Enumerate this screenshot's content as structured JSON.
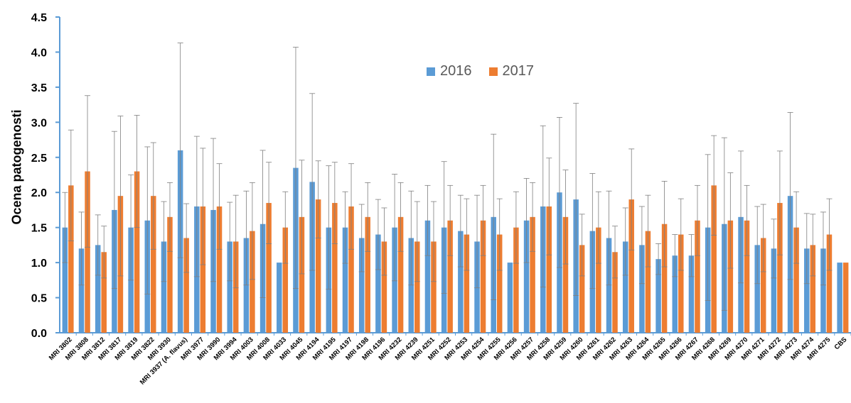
{
  "chart_data": {
    "type": "bar",
    "title": "",
    "xlabel": "",
    "ylabel": "Ocena patogenosti",
    "ylim": [
      0,
      4.5
    ],
    "yticks": [
      "0.0",
      "0.5",
      "1.0",
      "1.5",
      "2.0",
      "2.5",
      "3.0",
      "3.5",
      "4.0",
      "4.5"
    ],
    "grid": false,
    "legend_position": "top-center",
    "categories": [
      "MRI 3802",
      "MRI 3808",
      "MRI 3812",
      "MRI 3817",
      "MRI 3819",
      "MRI 3822",
      "MRI 3930",
      "MRI 3937 (A. flavus)",
      "MRI 3977",
      "MRI 3990",
      "MRI 3994",
      "MRI 4003",
      "MRI 4008",
      "MRI 4033",
      "MRI 4045",
      "MRI 4194",
      "MRI 4195",
      "MRI 4197",
      "MRI 4198",
      "MRI 4196",
      "MRI 4232",
      "MRI 4239",
      "MRI 4251",
      "MRI 4252",
      "MRI 4253",
      "MRI 4254",
      "MRI 4255",
      "MRI 4256",
      "MRI 4257",
      "MRI 4258",
      "MRI 4259",
      "MRI 4260",
      "MRI 4261",
      "MRI 4262",
      "MRI 4263",
      "MRI 4264",
      "MRI 4265",
      "MRI 4266",
      "MRI 4267",
      "MRI 4268",
      "MRI 4269",
      "MRI 4270",
      "MRI 4271",
      "MRI 4272",
      "MRI 4273",
      "MRI 4274",
      "MRI 4275",
      "CBS"
    ],
    "series": [
      {
        "name": "2016",
        "color": "#5B9BD5",
        "values": [
          1.5,
          1.2,
          1.25,
          1.75,
          1.5,
          1.6,
          1.3,
          2.6,
          1.8,
          1.75,
          1.3,
          1.35,
          1.55,
          1.0,
          2.35,
          2.15,
          1.5,
          1.5,
          1.35,
          1.4,
          1.5,
          1.35,
          1.6,
          1.5,
          1.45,
          1.3,
          1.65,
          1.0,
          1.6,
          1.8,
          2.0,
          1.9,
          1.45,
          1.35,
          1.3,
          1.25,
          1.05,
          1.1,
          1.1,
          1.5,
          1.55,
          1.65,
          1.25,
          1.2,
          1.95,
          1.2,
          1.2,
          1.0
        ],
        "errors": [
          0.5,
          0.52,
          0.43,
          1.12,
          0.75,
          1.05,
          0.57,
          1.53,
          1.0,
          1.02,
          0.56,
          0.67,
          1.05,
          0.0,
          1.72,
          1.26,
          0.88,
          0.51,
          0.48,
          0.5,
          0.76,
          0.67,
          0.5,
          0.94,
          0.51,
          0.66,
          1.18,
          0.0,
          0.6,
          1.15,
          1.07,
          1.37,
          0.82,
          0.67,
          0.48,
          0.55,
          0.22,
          0.3,
          0.3,
          1.04,
          1.23,
          0.94,
          0.55,
          0.42,
          1.19,
          0.5,
          0.52,
          0.0
        ]
      },
      {
        "name": "2017",
        "color": "#ED7D31",
        "values": [
          2.1,
          2.3,
          1.15,
          1.95,
          2.3,
          1.95,
          1.65,
          1.35,
          1.8,
          1.8,
          1.3,
          1.45,
          1.85,
          1.5,
          1.65,
          1.9,
          1.85,
          1.8,
          1.65,
          1.3,
          1.65,
          1.3,
          1.3,
          1.6,
          1.4,
          1.6,
          1.4,
          1.5,
          1.65,
          1.8,
          1.65,
          1.25,
          1.5,
          1.15,
          1.9,
          1.45,
          1.55,
          1.4,
          1.6,
          2.1,
          1.6,
          1.6,
          1.35,
          1.85,
          1.5,
          1.25,
          1.4,
          1.0
        ],
        "errors": [
          0.79,
          1.08,
          0.37,
          1.14,
          0.8,
          0.76,
          0.49,
          0.49,
          0.83,
          0.61,
          0.66,
          0.69,
          0.58,
          0.51,
          0.81,
          0.55,
          0.58,
          0.61,
          0.49,
          0.48,
          0.49,
          0.57,
          0.57,
          0.5,
          0.51,
          0.5,
          0.51,
          0.51,
          0.49,
          0.69,
          0.67,
          0.44,
          0.51,
          0.37,
          0.72,
          0.51,
          0.61,
          0.51,
          0.5,
          0.71,
          0.68,
          0.5,
          0.48,
          0.74,
          0.51,
          0.44,
          0.51,
          0.0
        ]
      }
    ]
  }
}
